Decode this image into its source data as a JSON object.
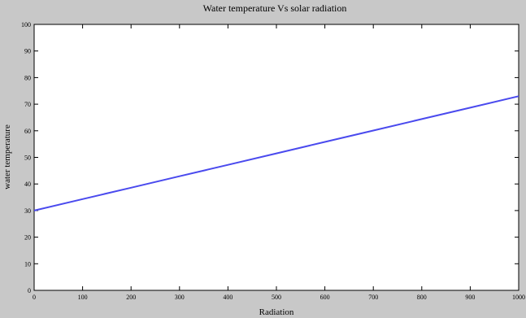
{
  "chart_data": {
    "type": "line",
    "title": "Water temperature Vs solar radiation",
    "xlabel": "Radiation",
    "ylabel": "water temperature",
    "xlim": [
      0,
      1000
    ],
    "ylim": [
      0,
      100
    ],
    "x_ticks": [
      0,
      100,
      200,
      300,
      400,
      500,
      600,
      700,
      800,
      900,
      1000
    ],
    "y_ticks": [
      0,
      10,
      20,
      30,
      40,
      50,
      60,
      70,
      80,
      90,
      100
    ],
    "grid": false,
    "series": [
      {
        "color": "#4a4aee",
        "x": [
          0,
          100,
          200,
          300,
          400,
          500,
          600,
          700,
          800,
          900,
          1000
        ],
        "y": [
          30,
          34.3,
          38.6,
          42.9,
          47.2,
          51.5,
          55.8,
          60.1,
          64.4,
          68.7,
          73
        ]
      }
    ]
  },
  "colors": {
    "figure_background": "#c8c8c8",
    "plot_background": "#ffffff",
    "axis": "#000000"
  }
}
